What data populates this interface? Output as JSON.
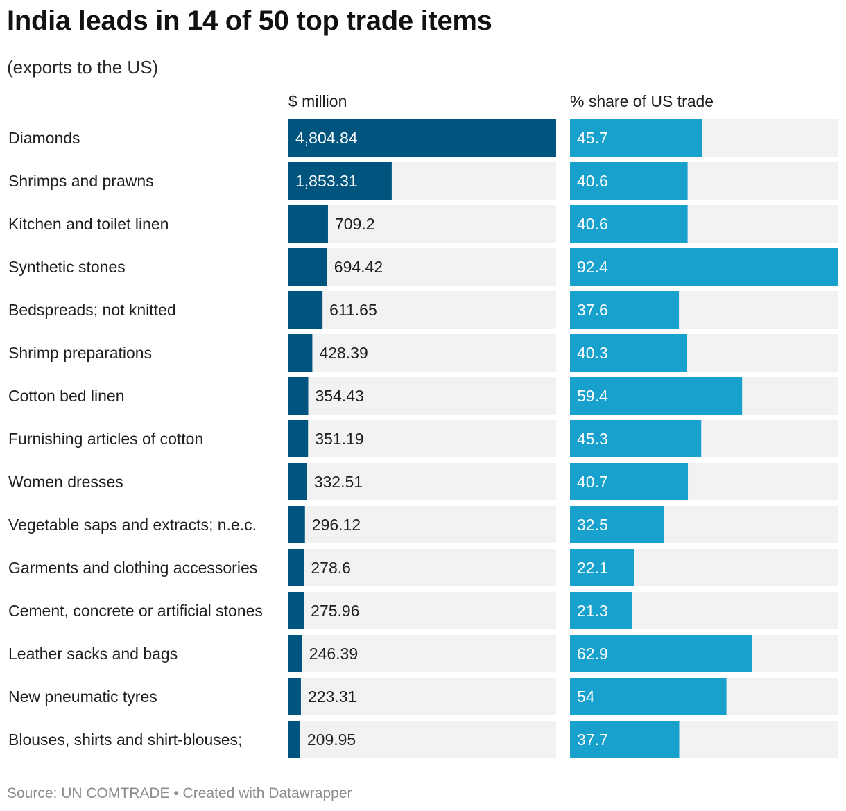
{
  "title": "India leads in 14 of 50 top trade items",
  "subtitle": "(exports to the US)",
  "source": "Source: UN COMTRADE • Created with Datawrapper",
  "colors": {
    "dark_bar": "#00557f",
    "light_bar": "#18a1cd",
    "track": "#f2f2f2",
    "label_on_bar": "#ffffff",
    "label_off_bar": "#1f1f1f"
  },
  "chart_data": [
    {
      "type": "bar",
      "orientation": "horizontal",
      "title": "$ million",
      "categories": [
        "Diamonds",
        "Shrimps and prawns",
        "Kitchen and toilet linen",
        "Synthetic stones",
        "Bedspreads; not knitted",
        "Shrimp preparations",
        "Cotton bed linen",
        "Furnishing articles of cotton",
        "Women dresses",
        "Vegetable saps and extracts; n.e.c.",
        "Garments and clothing accessories",
        "Cement, concrete or artificial stones",
        "Leather sacks and bags",
        "New pneumatic tyres",
        "Blouses, shirts and shirt-blouses;"
      ],
      "values": [
        4804.84,
        1853.31,
        709.2,
        694.42,
        611.65,
        428.39,
        354.43,
        351.19,
        332.51,
        296.12,
        278.6,
        275.96,
        246.39,
        223.31,
        209.95
      ],
      "labels": [
        "4,804.84",
        "1,853.31",
        "709.2",
        "694.42",
        "611.65",
        "428.39",
        "354.43",
        "351.19",
        "332.51",
        "296.12",
        "278.6",
        "275.96",
        "246.39",
        "223.31",
        "209.95"
      ],
      "xlim": [
        0,
        4804.84
      ]
    },
    {
      "type": "bar",
      "orientation": "horizontal",
      "title": "% share of US trade",
      "categories": [
        "Diamonds",
        "Shrimps and prawns",
        "Kitchen and toilet linen",
        "Synthetic stones",
        "Bedspreads; not knitted",
        "Shrimp preparations",
        "Cotton bed linen",
        "Furnishing articles of cotton",
        "Women dresses",
        "Vegetable saps and extracts; n.e.c.",
        "Garments and clothing accessories",
        "Cement, concrete or artificial stones",
        "Leather sacks and bags",
        "New pneumatic tyres",
        "Blouses, shirts and shirt-blouses;"
      ],
      "values": [
        45.7,
        40.6,
        40.6,
        92.4,
        37.6,
        40.3,
        59.4,
        45.3,
        40.7,
        32.5,
        22.1,
        21.3,
        62.9,
        54,
        37.7
      ],
      "labels": [
        "45.7",
        "40.6",
        "40.6",
        "92.4",
        "37.6",
        "40.3",
        "59.4",
        "45.3",
        "40.7",
        "32.5",
        "22.1",
        "21.3",
        "62.9",
        "54",
        "37.7"
      ],
      "xlim": [
        0,
        92.4
      ]
    }
  ]
}
